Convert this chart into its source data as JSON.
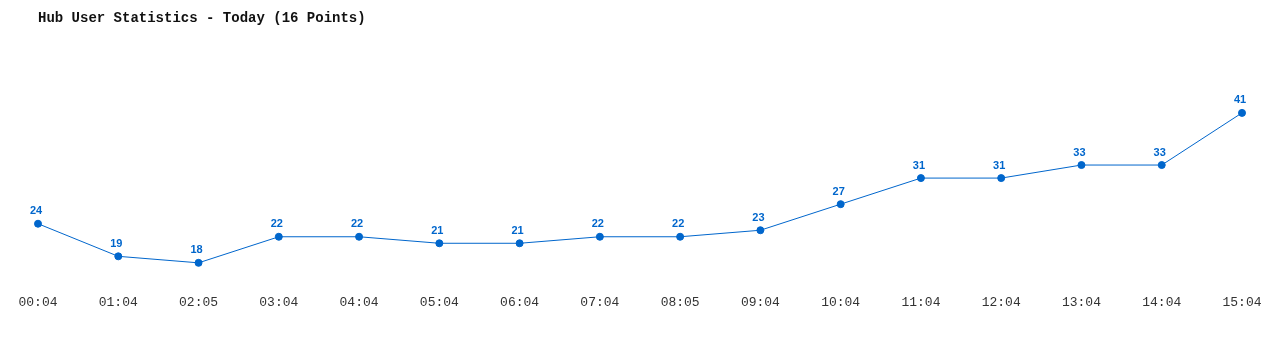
{
  "chart_data": {
    "type": "line",
    "title": "Hub User Statistics - Today (16 Points)",
    "categories": [
      "00:04",
      "01:04",
      "02:05",
      "03:04",
      "04:04",
      "05:04",
      "06:04",
      "07:04",
      "08:05",
      "09:04",
      "10:04",
      "11:04",
      "12:04",
      "13:04",
      "14:04",
      "15:04"
    ],
    "series": [
      {
        "color": "#0066cc",
        "values": [
          24,
          19,
          18,
          22,
          22,
          21,
          21,
          22,
          22,
          23,
          27,
          31,
          31,
          33,
          33,
          41
        ]
      }
    ],
    "data_labels": true,
    "marker": "circle",
    "grid": false,
    "legend": false
  }
}
